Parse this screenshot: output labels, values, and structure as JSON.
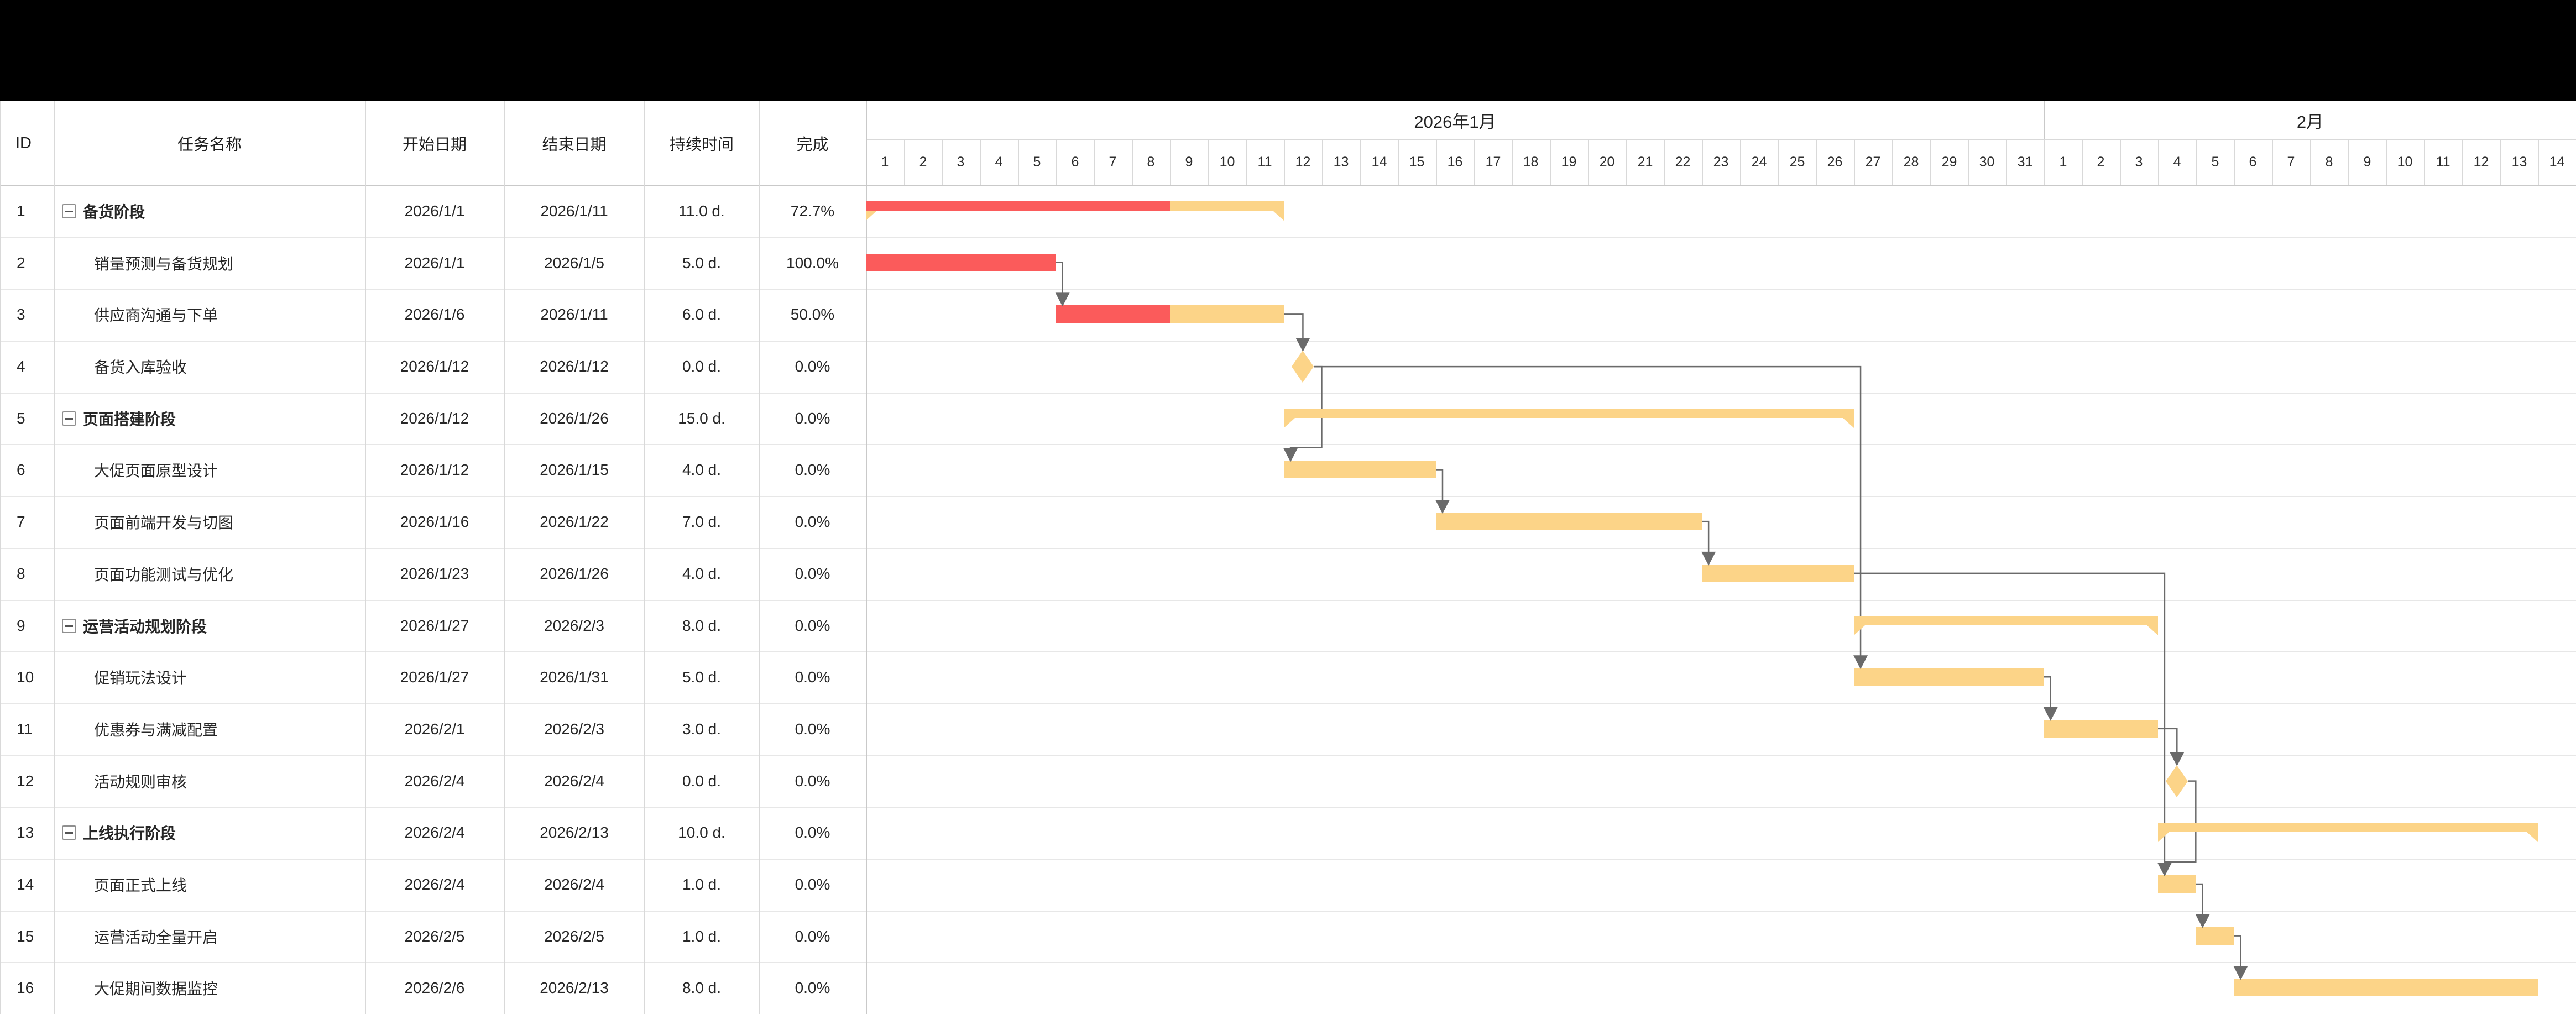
{
  "table": {
    "columns": [
      {
        "key": "id",
        "label": "ID"
      },
      {
        "key": "name",
        "label": "任务名称"
      },
      {
        "key": "start",
        "label": "开始日期"
      },
      {
        "key": "end",
        "label": "结束日期"
      },
      {
        "key": "duration",
        "label": "持续时间"
      },
      {
        "key": "complete",
        "label": "完成"
      }
    ]
  },
  "timeline": {
    "months": [
      {
        "label": "2026年1月",
        "days": 31
      },
      {
        "label": "2月",
        "days": 14
      }
    ]
  },
  "tasks": [
    {
      "id": "1",
      "name": "备货阶段",
      "type": "summary",
      "start": "2026/1/1",
      "end": "2026/1/11",
      "duration": "11.0 d.",
      "complete": "72.7%",
      "startDay": 0,
      "endDay": 11,
      "progress": 0.727
    },
    {
      "id": "2",
      "name": "销量预测与备货规划",
      "type": "task",
      "start": "2026/1/1",
      "end": "2026/1/5",
      "duration": "5.0 d.",
      "complete": "100.0%",
      "startDay": 0,
      "endDay": 5,
      "progress": 1
    },
    {
      "id": "3",
      "name": "供应商沟通与下单",
      "type": "task",
      "start": "2026/1/6",
      "end": "2026/1/11",
      "duration": "6.0 d.",
      "complete": "50.0%",
      "startDay": 5,
      "endDay": 11,
      "progress": 0.5
    },
    {
      "id": "4",
      "name": "备货入库验收",
      "type": "milestone",
      "start": "2026/1/12",
      "end": "2026/1/12",
      "duration": "0.0 d.",
      "complete": "0.0%",
      "startDay": 11,
      "endDay": 11,
      "progress": 0
    },
    {
      "id": "5",
      "name": "页面搭建阶段",
      "type": "summary",
      "start": "2026/1/12",
      "end": "2026/1/26",
      "duration": "15.0 d.",
      "complete": "0.0%",
      "startDay": 11,
      "endDay": 26,
      "progress": 0
    },
    {
      "id": "6",
      "name": "大促页面原型设计",
      "type": "task",
      "start": "2026/1/12",
      "end": "2026/1/15",
      "duration": "4.0 d.",
      "complete": "0.0%",
      "startDay": 11,
      "endDay": 15,
      "progress": 0
    },
    {
      "id": "7",
      "name": "页面前端开发与切图",
      "type": "task",
      "start": "2026/1/16",
      "end": "2026/1/22",
      "duration": "7.0 d.",
      "complete": "0.0%",
      "startDay": 15,
      "endDay": 22,
      "progress": 0
    },
    {
      "id": "8",
      "name": "页面功能测试与优化",
      "type": "task",
      "start": "2026/1/23",
      "end": "2026/1/26",
      "duration": "4.0 d.",
      "complete": "0.0%",
      "startDay": 22,
      "endDay": 26,
      "progress": 0
    },
    {
      "id": "9",
      "name": "运营活动规划阶段",
      "type": "summary",
      "start": "2026/1/27",
      "end": "2026/2/3",
      "duration": "8.0 d.",
      "complete": "0.0%",
      "startDay": 26,
      "endDay": 34,
      "progress": 0
    },
    {
      "id": "10",
      "name": "促销玩法设计",
      "type": "task",
      "start": "2026/1/27",
      "end": "2026/1/31",
      "duration": "5.0 d.",
      "complete": "0.0%",
      "startDay": 26,
      "endDay": 31,
      "progress": 0
    },
    {
      "id": "11",
      "name": "优惠券与满减配置",
      "type": "task",
      "start": "2026/2/1",
      "end": "2026/2/3",
      "duration": "3.0 d.",
      "complete": "0.0%",
      "startDay": 31,
      "endDay": 34,
      "progress": 0
    },
    {
      "id": "12",
      "name": "活动规则审核",
      "type": "milestone",
      "start": "2026/2/4",
      "end": "2026/2/4",
      "duration": "0.0 d.",
      "complete": "0.0%",
      "startDay": 34,
      "endDay": 34,
      "progress": 0
    },
    {
      "id": "13",
      "name": "上线执行阶段",
      "type": "summary",
      "start": "2026/2/4",
      "end": "2026/2/13",
      "duration": "10.0 d.",
      "complete": "0.0%",
      "startDay": 34,
      "endDay": 44,
      "progress": 0
    },
    {
      "id": "14",
      "name": "页面正式上线",
      "type": "task",
      "start": "2026/2/4",
      "end": "2026/2/4",
      "duration": "1.0 d.",
      "complete": "0.0%",
      "startDay": 34,
      "endDay": 35,
      "progress": 0
    },
    {
      "id": "15",
      "name": "运营活动全量开启",
      "type": "task",
      "start": "2026/2/5",
      "end": "2026/2/5",
      "duration": "1.0 d.",
      "complete": "0.0%",
      "startDay": 35,
      "endDay": 36,
      "progress": 0
    },
    {
      "id": "16",
      "name": "大促期间数据监控",
      "type": "task",
      "start": "2026/2/6",
      "end": "2026/2/13",
      "duration": "8.0 d.",
      "complete": "0.0%",
      "startDay": 36,
      "endDay": 44,
      "progress": 0
    }
  ],
  "dependencies": [
    [
      2,
      3
    ],
    [
      3,
      4
    ],
    [
      4,
      6
    ],
    [
      4,
      10
    ],
    [
      6,
      7
    ],
    [
      7,
      8
    ],
    [
      8,
      14
    ],
    [
      10,
      11
    ],
    [
      11,
      12
    ],
    [
      12,
      14
    ],
    [
      14,
      15
    ],
    [
      15,
      16
    ]
  ],
  "colors": {
    "bar_fill": "#FCD488",
    "bar_progress": "#FB5B5B",
    "connector": "#6A6A6A",
    "grid_row": "#E7E7E7",
    "grid_col": "#D9D9D9",
    "grid_strong": "#C9C9C9",
    "text": "#262626",
    "topbar_bg": "#000000"
  }
}
